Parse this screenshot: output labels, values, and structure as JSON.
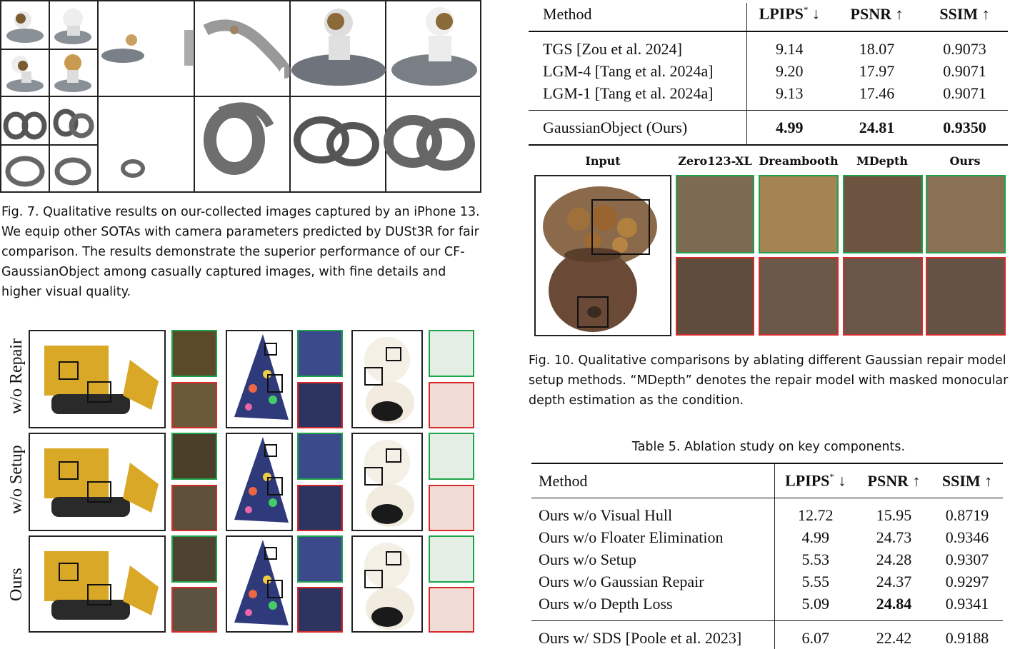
{
  "fig7": {
    "caption_prefix": "Fig. 7.",
    "caption_text": "Qualitative results on our-collected images captured by an iPhone 13. We equip other SOTAs with camera parameters predicted by DUSt3R for fair comparison. The results demonstrate the superior performance of our CF-GaussianObject among casually captured images, with fine details and higher visual quality."
  },
  "table_top": {
    "headers": [
      "Method",
      "LPIPS",
      "*",
      " ↓",
      "PSNR ↑",
      "SSIM ↑"
    ],
    "rows": [
      [
        "TGS [Zou et al. 2024]",
        "9.14",
        "18.07",
        "0.9073"
      ],
      [
        "LGM-4 [Tang et al. 2024a]",
        "9.20",
        "17.97",
        "0.9071"
      ],
      [
        "LGM-1 [Tang et al. 2024a]",
        "9.13",
        "17.46",
        "0.9071"
      ]
    ],
    "ours": [
      "GaussianObject (Ours)",
      "4.99",
      "24.81",
      "0.9350"
    ]
  },
  "fig10": {
    "columns": [
      "Input",
      "Zero123-XL",
      "Dreambooth",
      "MDepth",
      "Ours"
    ],
    "caption_prefix": "Fig. 10.",
    "caption_text": "Qualitative comparisons by ablating different Gaussian repair model setup methods. “MDepth” denotes the repair model with masked monocular depth estimation as the condition."
  },
  "table5": {
    "caption": "Table 5.  Ablation study on key components.",
    "headers": [
      "Method",
      "LPIPS",
      "*",
      " ↓",
      "PSNR ↑",
      "SSIM ↑"
    ],
    "rows": [
      [
        "Ours w/o Visual Hull",
        "12.72",
        "15.95",
        "0.8719"
      ],
      [
        "Ours w/o Floater Elimination",
        "4.99",
        "24.73",
        "0.9346"
      ],
      [
        "Ours w/o Setup",
        "5.53",
        "24.28",
        "0.9307"
      ],
      [
        "Ours w/o Gaussian Repair",
        "5.55",
        "24.37",
        "0.9297"
      ],
      [
        "Ours w/o Depth Loss",
        "5.09",
        "24.84",
        "0.9341"
      ]
    ],
    "last": [
      "Ours w/ SDS [Poole et al. 2023]",
      "6.07",
      "22.42",
      "0.9188"
    ]
  },
  "ablation_fig": {
    "row_labels": [
      "w/o Repair",
      "w/o Setup",
      "Ours"
    ]
  },
  "colors": {
    "green_box": "#1fa34a",
    "red_box": "#d62b2b"
  }
}
